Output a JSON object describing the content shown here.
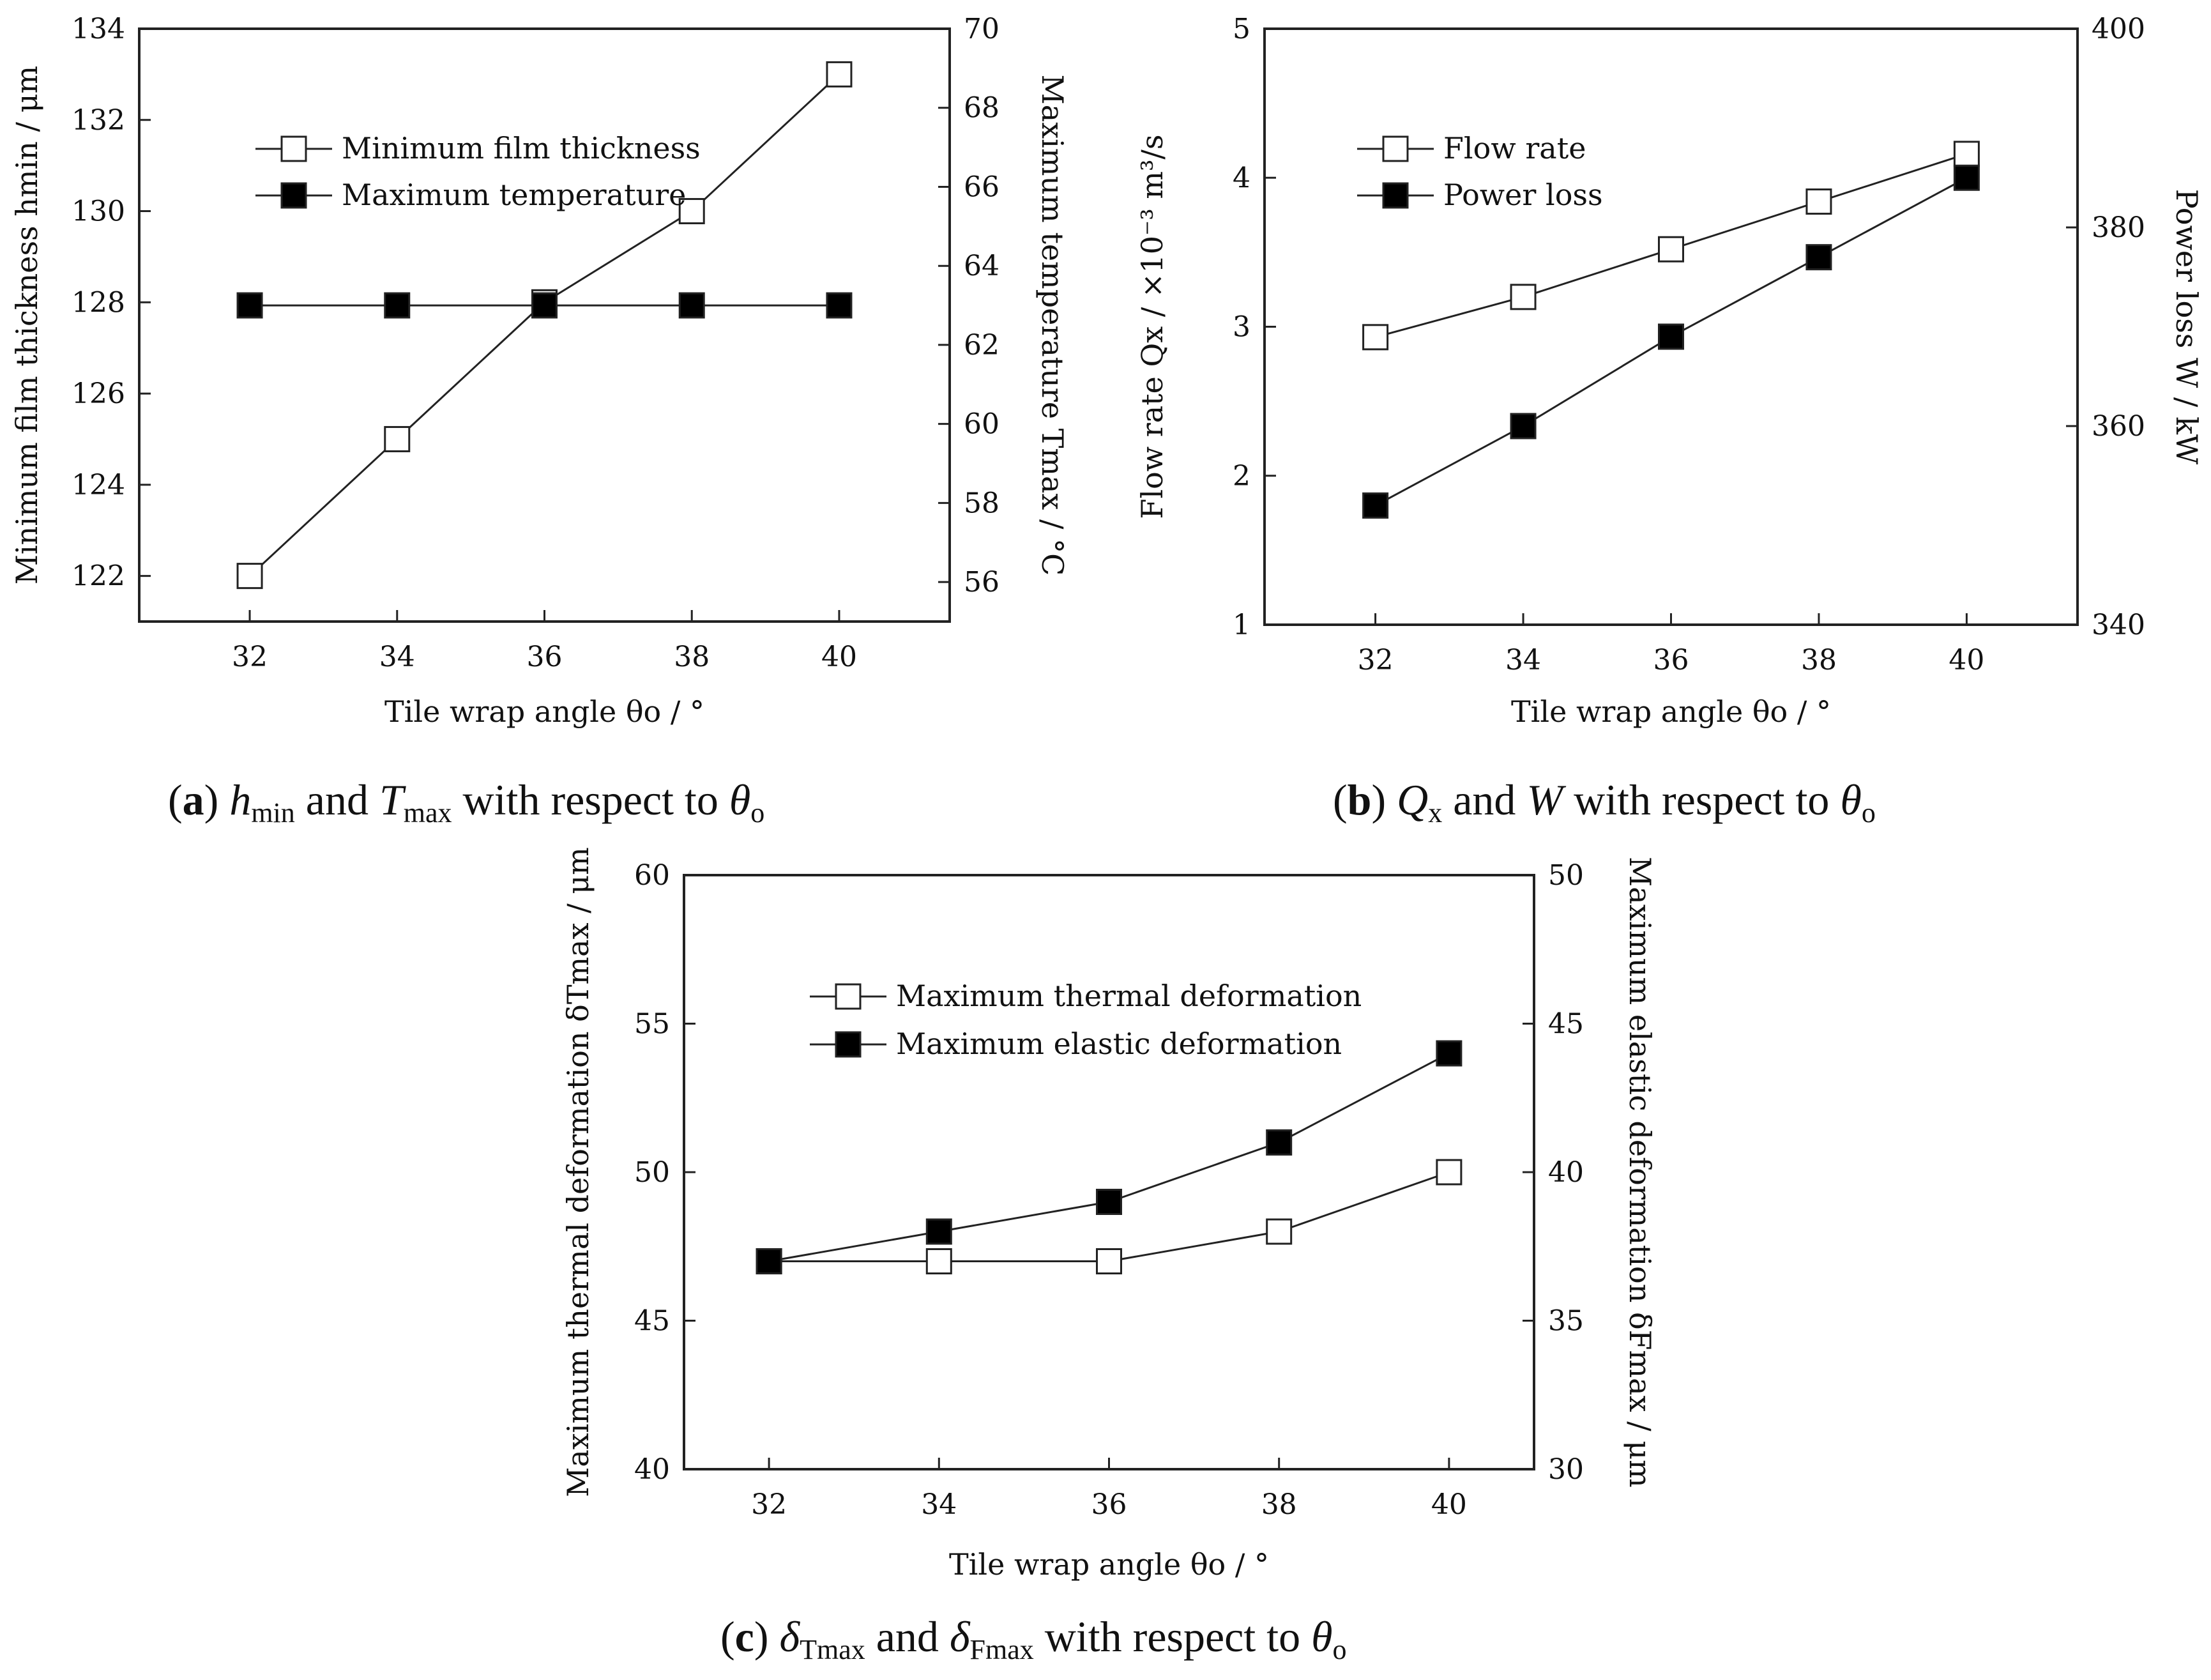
{
  "chart_data": [
    {
      "id": "a",
      "type": "line",
      "x": [
        32,
        34,
        36,
        38,
        40
      ],
      "xlim": [
        30.5,
        41.5
      ],
      "xticks": [
        "32",
        "34",
        "36",
        "38",
        "40"
      ],
      "xlabel": "Tile wrap angle θo / °",
      "ylabel_left": "Minimum film thickness hmin / μm",
      "ylim_left": [
        121,
        134
      ],
      "yticks_left": [
        "122",
        "124",
        "126",
        "128",
        "130",
        "132",
        "134"
      ],
      "ylabel_right": "Maximum temperature Tmax / °C",
      "ylim_right": [
        55,
        70
      ],
      "yticks_right": [
        "56",
        "58",
        "60",
        "62",
        "64",
        "66",
        "68",
        "70"
      ],
      "legend_position": "upper-left",
      "series": [
        {
          "name": "Minimum film thickness",
          "axis": "left",
          "marker": "open-square",
          "values": [
            122,
            125,
            128,
            130,
            133
          ]
        },
        {
          "name": "Maximum temperature",
          "axis": "right",
          "marker": "filled-square",
          "values": [
            63,
            63,
            63,
            63,
            63
          ]
        }
      ],
      "caption": {
        "label": "(a)",
        "v1": "h",
        "v1_sub": "min",
        "and": " and ",
        "v2": "T",
        "v2_sub": "max",
        "rest": " with respect to ",
        "theta": "θ",
        "theta_sub": "o"
      }
    },
    {
      "id": "b",
      "type": "line",
      "x": [
        32,
        34,
        36,
        38,
        40
      ],
      "xlim": [
        30.5,
        41.5
      ],
      "xticks": [
        "32",
        "34",
        "36",
        "38",
        "40"
      ],
      "xlabel": "Tile wrap angle θo / °",
      "ylabel_left": "Flow rate Qx / ×10⁻³ m³/s",
      "ylim_left": [
        1,
        5
      ],
      "yticks_left": [
        "1",
        "2",
        "3",
        "4",
        "5"
      ],
      "ylabel_right": "Power loss W / kW",
      "ylim_right": [
        340,
        400
      ],
      "yticks_right": [
        "340",
        "360",
        "380",
        "400"
      ],
      "legend_position": "upper-left",
      "series": [
        {
          "name": "Flow rate",
          "axis": "left",
          "marker": "open-square",
          "values": [
            2.93,
            3.2,
            3.52,
            3.84,
            4.16
          ]
        },
        {
          "name": "Power loss",
          "axis": "right",
          "marker": "filled-square",
          "values": [
            352,
            360,
            369,
            377,
            385
          ]
        }
      ],
      "caption": {
        "label": "(b)",
        "v1": "Q",
        "v1_sub": "x",
        "and": " and ",
        "v2": "W",
        "v2_sub": "",
        "rest": " with respect to ",
        "theta": "θ",
        "theta_sub": "o"
      }
    },
    {
      "id": "c",
      "type": "line",
      "x": [
        32,
        34,
        36,
        38,
        40
      ],
      "xlim": [
        31,
        41
      ],
      "xticks": [
        "32",
        "34",
        "36",
        "38",
        "40"
      ],
      "xlabel": "Tile wrap angle θo / °",
      "ylabel_left": "Maximum thermal deformation δTmax / μm",
      "ylim_left": [
        40,
        60
      ],
      "yticks_left": [
        "40",
        "45",
        "50",
        "55",
        "60"
      ],
      "ylabel_right": "Maximum elastic deformation δFmax / μm",
      "ylim_right": [
        30,
        50
      ],
      "yticks_right": [
        "30",
        "35",
        "40",
        "45",
        "50"
      ],
      "legend_position": "upper-left",
      "series": [
        {
          "name": "Maximum thermal deformation",
          "axis": "left",
          "marker": "open-square",
          "values": [
            47,
            47,
            47,
            48,
            50
          ]
        },
        {
          "name": "Maximum elastic deformation",
          "axis": "right",
          "marker": "filled-square",
          "values": [
            37,
            38,
            39,
            41,
            44
          ]
        }
      ],
      "caption": {
        "label": "(c)",
        "v1": "δ",
        "v1_sub": "Tmax",
        "and": " and ",
        "v2": "δ",
        "v2_sub": "Fmax",
        "rest": " with respect to ",
        "theta": "θ",
        "theta_sub": "o"
      }
    }
  ]
}
